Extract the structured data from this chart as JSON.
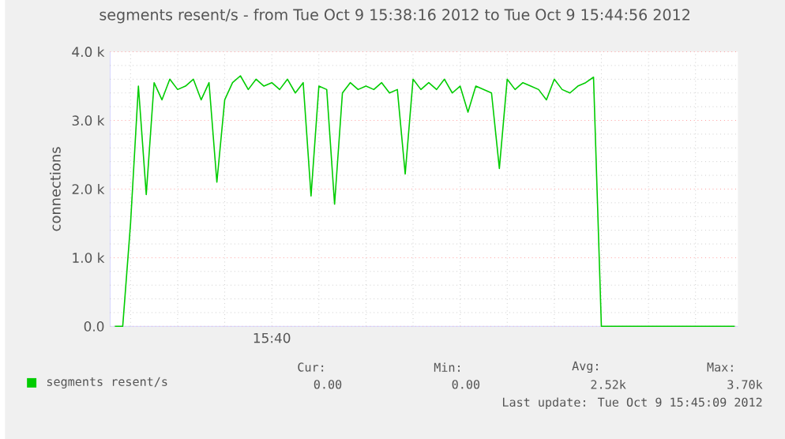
{
  "chart_data": {
    "type": "line",
    "title": "segments resent/s - from Tue Oct  9 15:38:16 2012 to Tue Oct  9 15:44:56 2012",
    "ylabel": "connections",
    "categories": [
      null,
      null,
      null,
      null,
      null,
      null,
      null,
      null,
      null,
      null,
      null,
      null,
      null,
      null,
      null,
      null,
      null,
      null,
      null,
      null,
      null,
      null,
      null,
      null,
      null,
      null,
      null,
      null,
      null,
      null,
      null,
      null,
      null,
      null,
      null,
      null,
      null,
      null,
      null,
      null,
      null,
      null,
      null,
      null,
      null,
      null,
      null,
      null,
      null,
      null,
      null,
      null,
      null,
      null,
      null,
      null,
      null,
      null,
      null,
      null,
      null,
      null,
      null,
      null,
      null,
      null,
      null,
      null,
      null,
      null,
      null,
      null,
      null,
      null,
      null,
      null,
      null,
      null,
      null,
      null
    ],
    "ylim": [
      0,
      4000
    ],
    "yticks": [
      {
        "value": 0,
        "label": "0.0"
      },
      {
        "value": 200,
        "label": null
      },
      {
        "value": 400,
        "label": null
      },
      {
        "value": 600,
        "label": null
      },
      {
        "value": 800,
        "label": null
      },
      {
        "value": 1000,
        "label": "1.0 k"
      },
      {
        "value": 1200,
        "label": null
      },
      {
        "value": 1400,
        "label": null
      },
      {
        "value": 1600,
        "label": null
      },
      {
        "value": 1800,
        "label": null
      },
      {
        "value": 2000,
        "label": "2.0 k"
      },
      {
        "value": 2200,
        "label": null
      },
      {
        "value": 2400,
        "label": null
      },
      {
        "value": 2600,
        "label": null
      },
      {
        "value": 2800,
        "label": null
      },
      {
        "value": 3000,
        "label": "3.0 k"
      },
      {
        "value": 3200,
        "label": null
      },
      {
        "value": 3400,
        "label": null
      },
      {
        "value": 3600,
        "label": null
      },
      {
        "value": 3800,
        "label": null
      },
      {
        "value": 4000,
        "label": "4.0 k"
      }
    ],
    "grid": true,
    "legend": "bottom left",
    "marker": "none",
    "line_style": "solid",
    "series": [
      {
        "name": "segments resent/s",
        "color": "#00cc00",
        "values": [
          0,
          0,
          1500,
          3500,
          1920,
          3550,
          3300,
          3600,
          3450,
          3500,
          3600,
          3300,
          3550,
          2100,
          3300,
          3550,
          3650,
          3450,
          3600,
          3500,
          3550,
          3450,
          3600,
          3400,
          3550,
          1900,
          3500,
          3450,
          1780,
          3400,
          3550,
          3450,
          3500,
          3450,
          3550,
          3400,
          3450,
          2220,
          3600,
          3450,
          3550,
          3450,
          3600,
          3400,
          3500,
          3120,
          3500,
          3450,
          3400,
          2300,
          3600,
          3450,
          3550,
          3500,
          3450,
          3300,
          3600,
          3450,
          3400,
          3500,
          3550,
          3630,
          0,
          0,
          0,
          0,
          0,
          0,
          0,
          0,
          0,
          0,
          0,
          0,
          0,
          0,
          0,
          0,
          0,
          0
        ]
      }
    ],
    "annotations": [
      "Cur:",
      "Min:",
      "Avg:",
      "Max:",
      "0.00",
      "0.00",
      "2.52k",
      "3.70k",
      "Last update:  Tue Oct  9 15:45:09 2012",
      "15:40"
    ]
  }
}
